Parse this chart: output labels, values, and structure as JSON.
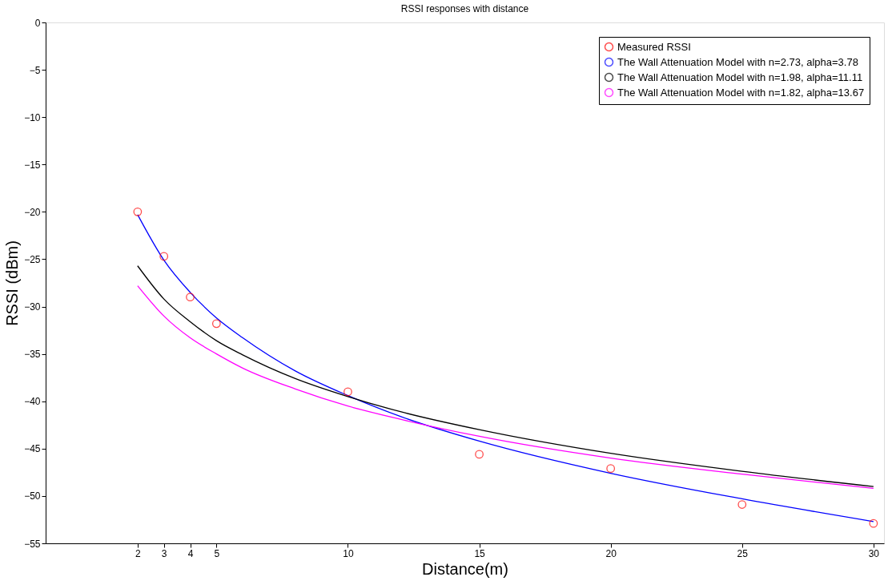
{
  "chart_data": {
    "type": "line",
    "title": "RSSI responses with distance",
    "xlabel": "Distance(m)",
    "ylabel": "RSSI (dBm)",
    "xlim": [
      -1.5,
      30.4
    ],
    "xticks": [
      2,
      3,
      4,
      5,
      10,
      15,
      20,
      25,
      30
    ],
    "ylim": [
      -55,
      0
    ],
    "yticks": [
      0,
      -5,
      -10,
      -15,
      -20,
      -25,
      -30,
      -35,
      -40,
      -45,
      -50,
      -55
    ],
    "grid": false,
    "legend": "top right",
    "series": [
      {
        "name": "Measured RSSI",
        "type": "scatter",
        "marker": "circle",
        "color": "#ff0000",
        "x": [
          2,
          3,
          4,
          5,
          10,
          15,
          20,
          25,
          30
        ],
        "values": [
          -20,
          -24.7,
          -29,
          -31.8,
          -39,
          -45.6,
          -47.1,
          -50.9,
          -52.9
        ]
      },
      {
        "name": "The Wall Attenuation Model with n=2.73, alpha=3.78",
        "marker": "none",
        "color": "#0000ff",
        "x": [
          2,
          3,
          4,
          5,
          6,
          8,
          10,
          12,
          15,
          20,
          25,
          30
        ],
        "values": [
          -20.3,
          -25.1,
          -28.5,
          -31.2,
          -33.3,
          -36.8,
          -39.4,
          -41.6,
          -44.2,
          -47.6,
          -50.3,
          -52.7
        ]
      },
      {
        "name": "The Wall Attenuation Model with n=1.98, alpha=11.11",
        "marker": "none",
        "color": "#000000",
        "x": [
          2,
          3,
          4,
          5,
          6,
          8,
          10,
          12,
          15,
          20,
          25,
          30
        ],
        "values": [
          -25.7,
          -29.2,
          -31.6,
          -33.6,
          -35.1,
          -37.6,
          -39.5,
          -41.1,
          -43.0,
          -45.5,
          -47.4,
          -49.0
        ]
      },
      {
        "name": "The Wall Attenuation Model with n=1.82, alpha=13.67",
        "marker": "none",
        "color": "#ff00ff",
        "x": [
          2,
          3,
          4,
          5,
          6,
          8,
          10,
          12,
          15,
          20,
          25,
          30
        ],
        "values": [
          -27.8,
          -31.0,
          -33.3,
          -35.0,
          -36.5,
          -38.7,
          -40.5,
          -41.9,
          -43.7,
          -46.0,
          -47.7,
          -49.2
        ]
      }
    ]
  }
}
